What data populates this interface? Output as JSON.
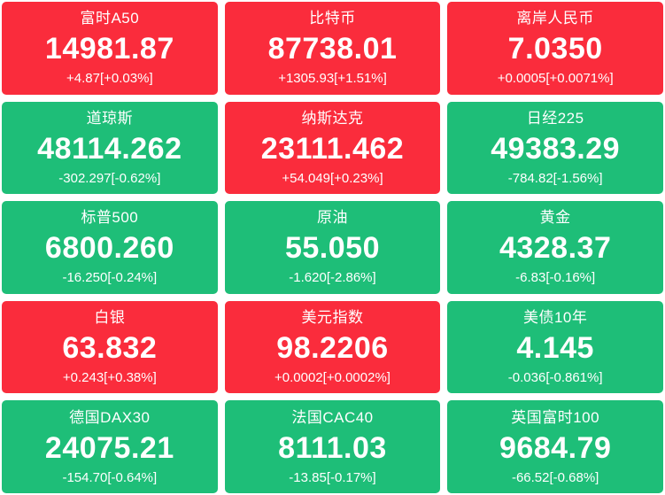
{
  "colors": {
    "up": "#fa2c3c",
    "down": "#1ebe78",
    "gutter": "#ffffff",
    "text": "#ffffff"
  },
  "tiles": [
    {
      "name": "富时A50",
      "value": "14981.87",
      "change": "+4.87[+0.03%]",
      "direction": "up"
    },
    {
      "name": "比特币",
      "value": "87738.01",
      "change": "+1305.93[+1.51%]",
      "direction": "up"
    },
    {
      "name": "离岸人民币",
      "value": "7.0350",
      "change": "+0.0005[+0.0071%]",
      "direction": "up"
    },
    {
      "name": "道琼斯",
      "value": "48114.262",
      "change": "-302.297[-0.62%]",
      "direction": "down"
    },
    {
      "name": "纳斯达克",
      "value": "23111.462",
      "change": "+54.049[+0.23%]",
      "direction": "up"
    },
    {
      "name": "日经225",
      "value": "49383.29",
      "change": "-784.82[-1.56%]",
      "direction": "down"
    },
    {
      "name": "标普500",
      "value": "6800.260",
      "change": "-16.250[-0.24%]",
      "direction": "down"
    },
    {
      "name": "原油",
      "value": "55.050",
      "change": "-1.620[-2.86%]",
      "direction": "down"
    },
    {
      "name": "黄金",
      "value": "4328.37",
      "change": "-6.83[-0.16%]",
      "direction": "down"
    },
    {
      "name": "白银",
      "value": "63.832",
      "change": "+0.243[+0.38%]",
      "direction": "up"
    },
    {
      "name": "美元指数",
      "value": "98.2206",
      "change": "+0.0002[+0.0002%]",
      "direction": "up"
    },
    {
      "name": "美债10年",
      "value": "4.145",
      "change": "-0.036[-0.861%]",
      "direction": "down"
    },
    {
      "name": "德国DAX30",
      "value": "24075.21",
      "change": "-154.70[-0.64%]",
      "direction": "down"
    },
    {
      "name": "法国CAC40",
      "value": "8111.03",
      "change": "-13.85[-0.17%]",
      "direction": "down"
    },
    {
      "name": "英国富时100",
      "value": "9684.79",
      "change": "-66.52[-0.68%]",
      "direction": "down"
    }
  ]
}
